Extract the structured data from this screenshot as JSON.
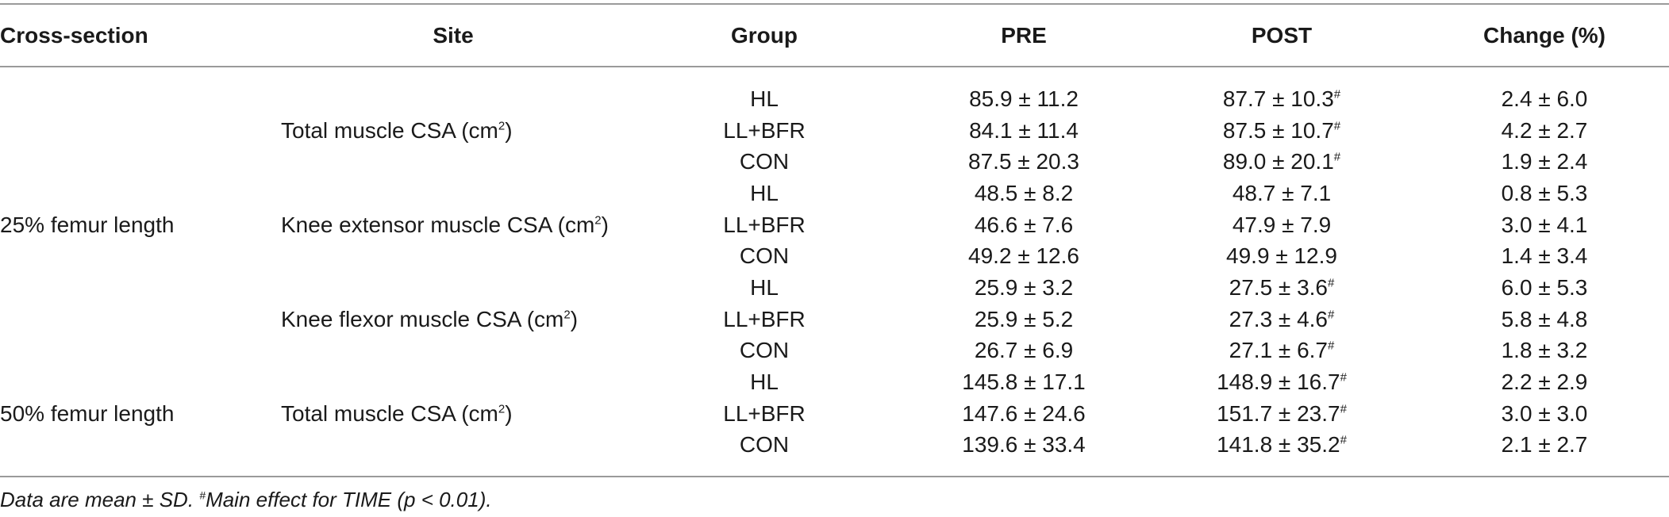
{
  "headers": {
    "cross_section": "Cross-section",
    "site": "Site",
    "group": "Group",
    "pre": "PRE",
    "post": "POST",
    "change": "Change (%)"
  },
  "cross_sections": [
    {
      "label": "25% femur length"
    },
    {
      "label": "50% femur length"
    }
  ],
  "sites": [
    {
      "label": "Total muscle CSA (cm",
      "sup": "2",
      "tail": ")"
    },
    {
      "label": "Knee extensor muscle CSA (cm",
      "sup": "2",
      "tail": ")"
    },
    {
      "label": "Knee flexor muscle CSA (cm",
      "sup": "2",
      "tail": ")"
    },
    {
      "label": "Total muscle CSA (cm",
      "sup": "2",
      "tail": ")"
    }
  ],
  "rows": [
    {
      "group": "HL",
      "pre": "85.9 ± 11.2",
      "post": "87.7 ± 10.3",
      "post_mark": "#",
      "change": "2.4 ± 6.0"
    },
    {
      "group": "LL+BFR",
      "pre": "84.1 ± 11.4",
      "post": "87.5 ± 10.7",
      "post_mark": "#",
      "change": "4.2 ± 2.7"
    },
    {
      "group": "CON",
      "pre": "87.5 ± 20.3",
      "post": "89.0 ± 20.1",
      "post_mark": "#",
      "change": "1.9 ± 2.4"
    },
    {
      "group": "HL",
      "pre": "48.5 ± 8.2",
      "post": "48.7 ± 7.1",
      "post_mark": "",
      "change": "0.8 ± 5.3"
    },
    {
      "group": "LL+BFR",
      "pre": "46.6 ± 7.6",
      "post": "47.9 ± 7.9",
      "post_mark": "",
      "change": "3.0 ± 4.1"
    },
    {
      "group": "CON",
      "pre": "49.2 ± 12.6",
      "post": "49.9 ± 12.9",
      "post_mark": "",
      "change": "1.4 ± 3.4"
    },
    {
      "group": "HL",
      "pre": "25.9 ± 3.2",
      "post": "27.5 ± 3.6",
      "post_mark": "#",
      "change": "6.0 ± 5.3"
    },
    {
      "group": "LL+BFR",
      "pre": "25.9 ± 5.2",
      "post": "27.3 ± 4.6",
      "post_mark": "#",
      "change": "5.8 ± 4.8"
    },
    {
      "group": "CON",
      "pre": "26.7 ± 6.9",
      "post": "27.1 ± 6.7",
      "post_mark": "#",
      "change": "1.8 ± 3.2"
    },
    {
      "group": "HL",
      "pre": "145.8 ± 17.1",
      "post": "148.9 ± 16.7",
      "post_mark": "#",
      "change": "2.2 ± 2.9"
    },
    {
      "group": "LL+BFR",
      "pre": "147.6 ± 24.6",
      "post": "151.7 ± 23.7",
      "post_mark": "#",
      "change": "3.0 ± 3.0"
    },
    {
      "group": "CON",
      "pre": "139.6 ± 33.4",
      "post": "141.8 ± 35.2",
      "post_mark": "#",
      "change": "2.1 ± 2.7"
    }
  ],
  "footnote": {
    "lead": "Data are mean ± SD. ",
    "mark": "#",
    "text": "Main effect for TIME (p < 0.01)."
  }
}
